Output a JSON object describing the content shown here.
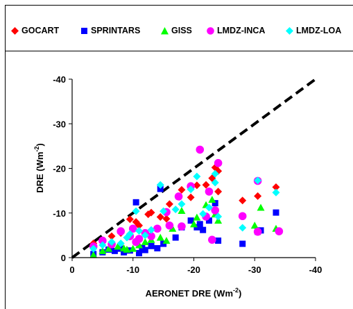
{
  "legend": [
    {
      "name": "GOCART",
      "color": "#ff0000",
      "marker": "diamond"
    },
    {
      "name": "SPRINTARS",
      "color": "#0000ff",
      "marker": "square"
    },
    {
      "name": "GISS",
      "color": "#00ff00",
      "marker": "triangle"
    },
    {
      "name": "LMDZ-INCA",
      "color": "#ff00ff",
      "marker": "circle"
    },
    {
      "name": "LMDZ-LOA",
      "color": "#00ffff",
      "marker": "diamond"
    }
  ],
  "chart_data": {
    "type": "scatter",
    "xlabel": "AERONET DRE (Wm",
    "xlabel_sup": "-2",
    "xlabel_tail": ")",
    "ylabel": "DRE (Wm",
    "ylabel_sup": "-2",
    "ylabel_tail": ")",
    "xlim": [
      0,
      -40
    ],
    "ylim": [
      0,
      -40
    ],
    "xticks": [
      0,
      -10,
      -20,
      -30,
      -40
    ],
    "yticks": [
      0,
      -10,
      -20,
      -30,
      -40
    ],
    "reference_line": {
      "style": "dashed",
      "from": [
        0,
        0
      ],
      "to": [
        -40,
        -40
      ]
    },
    "grid": false,
    "legend_position": "top",
    "series": [
      {
        "name": "GOCART",
        "color": "#ff0000",
        "marker": "diamond",
        "points": [
          [
            -3.5,
            -3.2
          ],
          [
            -5,
            -3.5
          ],
          [
            -6.5,
            -4.8
          ],
          [
            -8,
            -5.5
          ],
          [
            -9.5,
            -8.6
          ],
          [
            -10.5,
            -8
          ],
          [
            -11,
            -7.2
          ],
          [
            -12.5,
            -9.7
          ],
          [
            -13,
            -10.1
          ],
          [
            -14.5,
            -9.1
          ],
          [
            -15.5,
            -8.7
          ],
          [
            -16,
            -12
          ],
          [
            -18,
            -15.2
          ],
          [
            -19.5,
            -13.5
          ],
          [
            -20.5,
            -16.2
          ],
          [
            -22,
            -16.3
          ],
          [
            -23,
            -17.8
          ],
          [
            -23.5,
            -20.2
          ],
          [
            -24,
            -19.4
          ],
          [
            -24,
            -14.8
          ],
          [
            -28,
            -12.8
          ],
          [
            -30.5,
            -13.8
          ],
          [
            -33.5,
            -15.8
          ]
        ]
      },
      {
        "name": "SPRINTARS",
        "color": "#0000ff",
        "marker": "square",
        "points": [
          [
            -3.5,
            -0.8
          ],
          [
            -5,
            -1.2
          ],
          [
            -6,
            -1.8
          ],
          [
            -7,
            -1.5
          ],
          [
            -8,
            -2
          ],
          [
            -8.5,
            -1.2
          ],
          [
            -9.5,
            -1.6
          ],
          [
            -10.5,
            -12.4
          ],
          [
            -11,
            -1
          ],
          [
            -11.5,
            -2.2
          ],
          [
            -12,
            -1.7
          ],
          [
            -13,
            -2.6
          ],
          [
            -14,
            -2.1
          ],
          [
            -14.5,
            -15.4
          ],
          [
            -15,
            -3.1
          ],
          [
            -17,
            -4.5
          ],
          [
            -18,
            -6.8
          ],
          [
            -19.5,
            -8.3
          ],
          [
            -20.5,
            -6.8
          ],
          [
            -21,
            -7.5
          ],
          [
            -21.5,
            -6.2
          ],
          [
            -22.5,
            -8.3
          ],
          [
            -23.5,
            -12.2
          ],
          [
            -24,
            -3.8
          ],
          [
            -28,
            -3.1
          ],
          [
            -30.5,
            -5.8
          ],
          [
            -31,
            -6.1
          ],
          [
            -33.5,
            -10.1
          ]
        ]
      },
      {
        "name": "GISS",
        "color": "#00ff00",
        "marker": "triangle",
        "points": [
          [
            -3.5,
            -0.6
          ],
          [
            -5,
            -1.5
          ],
          [
            -6,
            -2
          ],
          [
            -7.5,
            -2.5
          ],
          [
            -8.5,
            -2.1
          ],
          [
            -9,
            -1.8
          ],
          [
            -10,
            -2
          ],
          [
            -11,
            -2.8
          ],
          [
            -12,
            -3.5
          ],
          [
            -13,
            -4
          ],
          [
            -14.5,
            -4.5
          ],
          [
            -15.5,
            -3.8
          ],
          [
            -16.5,
            -6.5
          ],
          [
            -18,
            -10.5
          ],
          [
            -20,
            -7.5
          ],
          [
            -20.5,
            -9
          ],
          [
            -22,
            -11.8
          ],
          [
            -23,
            -13
          ],
          [
            -23.5,
            -9.7
          ],
          [
            -24,
            -8.3
          ],
          [
            -30,
            -7.2
          ],
          [
            -31,
            -11.2
          ],
          [
            -33.5,
            -6.5
          ]
        ]
      },
      {
        "name": "LMDZ-INCA",
        "color": "#ff00ff",
        "marker": "circle",
        "points": [
          [
            -3.5,
            -2.5
          ],
          [
            -5,
            -3.8
          ],
          [
            -6.5,
            -3
          ],
          [
            -8,
            -5.9
          ],
          [
            -9.5,
            -4.8
          ],
          [
            -10,
            -6.5
          ],
          [
            -10.5,
            -3.5
          ],
          [
            -11,
            -4.2
          ],
          [
            -12,
            -5.5
          ],
          [
            -13,
            -4.8
          ],
          [
            -14,
            -6.5
          ],
          [
            -15.5,
            -10.2
          ],
          [
            -16,
            -7.2
          ],
          [
            -17.5,
            -13.7
          ],
          [
            -18,
            -7
          ],
          [
            -19.5,
            -16
          ],
          [
            -21,
            -24.2
          ],
          [
            -22,
            -9.2
          ],
          [
            -22.5,
            -14.8
          ],
          [
            -23,
            -4
          ],
          [
            -23.5,
            -10.6
          ],
          [
            -24,
            -21.2
          ],
          [
            -28,
            -9.3
          ],
          [
            -30.5,
            -5.8
          ],
          [
            -30.5,
            -17.2
          ],
          [
            -34,
            -5.9
          ]
        ]
      },
      {
        "name": "LMDZ-LOA",
        "color": "#00ffff",
        "marker": "diamond",
        "points": [
          [
            -3.5,
            -2
          ],
          [
            -5,
            -2.8
          ],
          [
            -6.5,
            -3.5
          ],
          [
            -8,
            -3.2
          ],
          [
            -9,
            -4.5
          ],
          [
            -9.5,
            -5.3
          ],
          [
            -10.5,
            -10.4
          ],
          [
            -11,
            -6
          ],
          [
            -12,
            -5
          ],
          [
            -13,
            -6.2
          ],
          [
            -14.5,
            -16.3
          ],
          [
            -15,
            -10.4
          ],
          [
            -17,
            -10.8
          ],
          [
            -18,
            -12
          ],
          [
            -19.5,
            -15.3
          ],
          [
            -20.5,
            -18.2
          ],
          [
            -21.5,
            -9.8
          ],
          [
            -22.5,
            -11.2
          ],
          [
            -23.5,
            -18.8
          ],
          [
            -23.5,
            -16.8
          ],
          [
            -24,
            -9.2
          ],
          [
            -28,
            -6.7
          ],
          [
            -30.5,
            -17.3
          ],
          [
            -33.5,
            -14.6
          ]
        ]
      }
    ]
  }
}
